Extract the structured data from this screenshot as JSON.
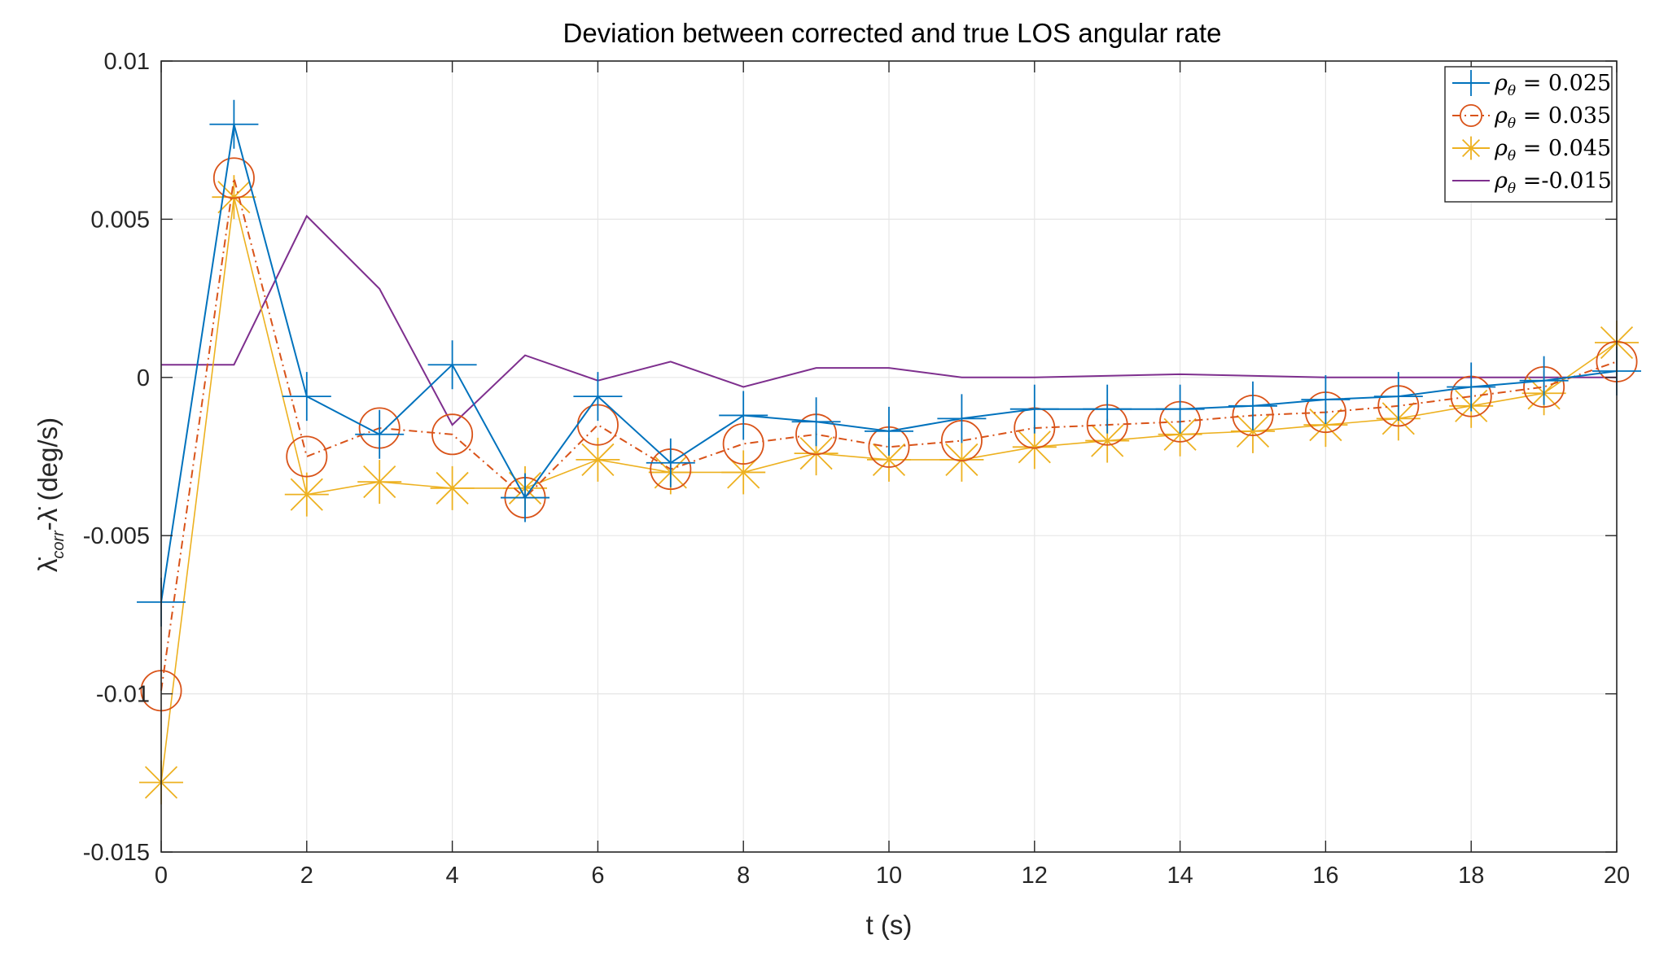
{
  "chart_data": {
    "type": "line",
    "title": "Deviation between corrected and true LOS angular rate",
    "xlabel": "t (s)",
    "ylabel_main": "λ̇",
    "ylabel_sub": "corr",
    "ylabel_rest": "-λ̇ (deg/s)",
    "xlim": [
      0,
      20
    ],
    "ylim": [
      -0.015,
      0.01
    ],
    "grid": true,
    "legend_position": "top-right",
    "x_ticks": [
      0,
      2,
      4,
      6,
      8,
      10,
      12,
      14,
      16,
      18,
      20
    ],
    "x_tick_labels": [
      "0",
      "2",
      "4",
      "6",
      "8",
      "10",
      "12",
      "14",
      "16",
      "18",
      "20"
    ],
    "y_ticks": [
      -0.015,
      -0.01,
      -0.005,
      0,
      0.005,
      0.01
    ],
    "y_tick_labels": [
      "-0.015",
      "-0.01",
      "-0.005",
      "0",
      "0.005",
      "0.01"
    ],
    "x": [
      0,
      1,
      2,
      3,
      4,
      5,
      6,
      7,
      8,
      9,
      10,
      11,
      12,
      13,
      14,
      15,
      16,
      17,
      18,
      19,
      20
    ],
    "series": [
      {
        "name": "ρθ = 0.025",
        "legend_symbol": "ρ",
        "legend_sub": "θ",
        "legend_rest": " = 0.025",
        "color": "#0072BD",
        "line_style": "solid",
        "marker": "plus",
        "values": [
          -0.0071,
          0.008,
          -0.0006,
          -0.0018,
          0.0004,
          -0.0038,
          -0.0006,
          -0.0027,
          -0.0012,
          -0.0014,
          -0.0017,
          -0.0013,
          -0.001,
          -0.001,
          -0.001,
          -0.0009,
          -0.0007,
          -0.0006,
          -0.0003,
          -0.0001,
          0.0002
        ]
      },
      {
        "name": "ρθ = 0.035",
        "legend_symbol": "ρ",
        "legend_sub": "θ",
        "legend_rest": " = 0.035",
        "color": "#D95319",
        "line_style": "dashdot",
        "marker": "circle",
        "values": [
          -0.0099,
          0.0063,
          -0.0025,
          -0.0016,
          -0.0018,
          -0.0038,
          -0.0015,
          -0.0029,
          -0.0021,
          -0.0018,
          -0.0022,
          -0.002,
          -0.0016,
          -0.0015,
          -0.0014,
          -0.0012,
          -0.0011,
          -0.0009,
          -0.0006,
          -0.0003,
          0.0005
        ]
      },
      {
        "name": "ρθ = 0.045",
        "legend_symbol": "ρ",
        "legend_sub": "θ",
        "legend_rest": " = 0.045",
        "color": "#EDB120",
        "line_style": "solid",
        "marker": "asterisk",
        "values": [
          -0.0128,
          0.0057,
          -0.0037,
          -0.0033,
          -0.0035,
          -0.0035,
          -0.0026,
          -0.003,
          -0.003,
          -0.0024,
          -0.0026,
          -0.0026,
          -0.0022,
          -0.002,
          -0.0018,
          -0.0017,
          -0.0015,
          -0.0013,
          -0.0009,
          -0.0005,
          0.0011
        ]
      },
      {
        "name": "ρθ =-0.015",
        "legend_symbol": "ρ",
        "legend_sub": "θ",
        "legend_rest": " =-0.015",
        "color": "#7E2F8E",
        "line_style": "solid",
        "marker": "none",
        "x": [
          0,
          1,
          2,
          3,
          4,
          5,
          6,
          7,
          8,
          9,
          10,
          11,
          12,
          14,
          16,
          18,
          20
        ],
        "values": [
          0.0004,
          0.0004,
          0.0051,
          0.0028,
          -0.0015,
          0.0007,
          -0.0001,
          0.0005,
          -0.0003,
          0.0003,
          0.0003,
          0.0,
          0.0,
          0.0001,
          0.0,
          0.0,
          0.0
        ]
      }
    ]
  }
}
